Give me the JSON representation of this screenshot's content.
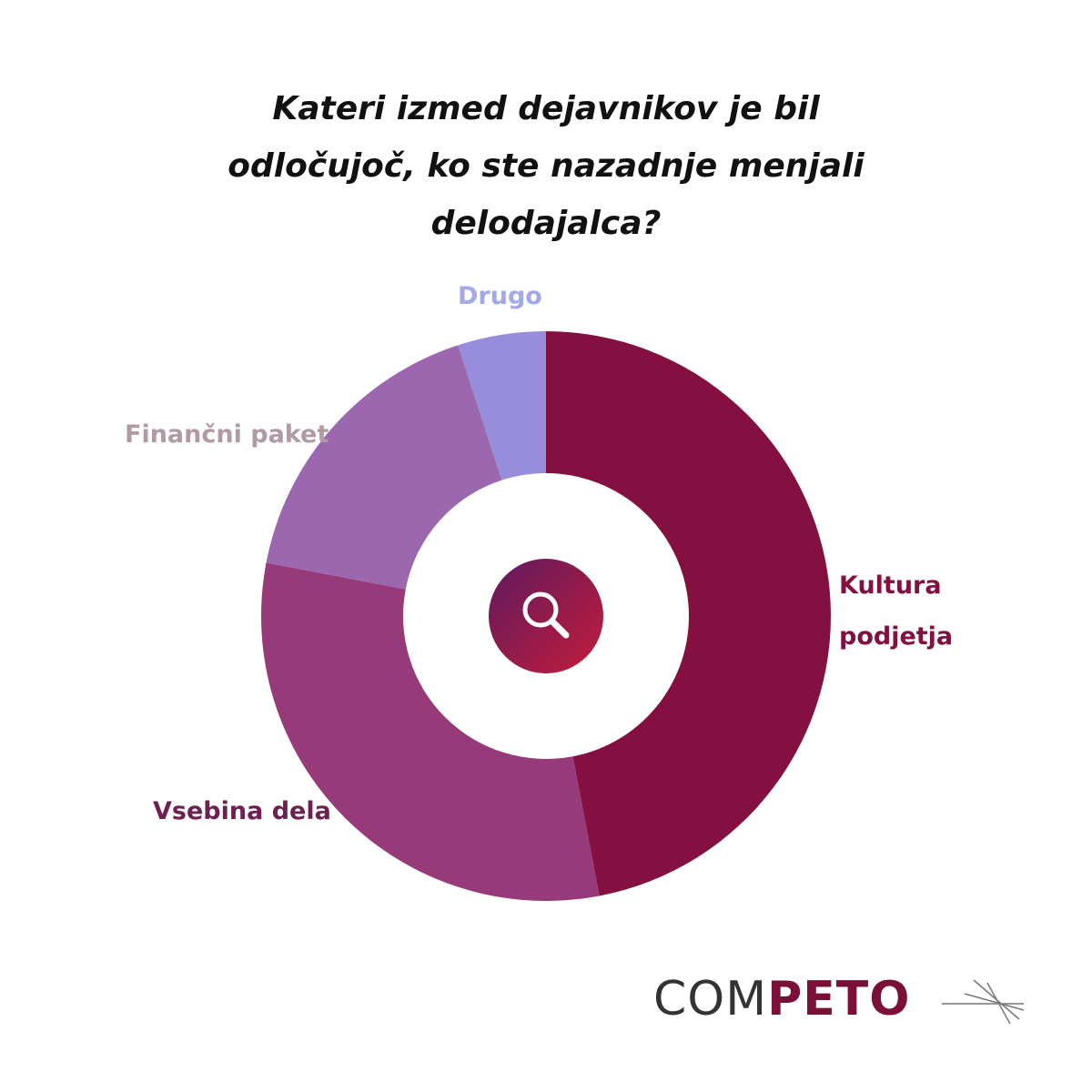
{
  "chart_data": {
    "type": "donut",
    "title": "Kateri izmed dejavnikov je bil odločujoč, ko ste nazadnje menjali delodajalca?",
    "categories": [
      "Kultura podjetja",
      "Vsebina dela",
      "Finančni paket",
      "Drugo"
    ],
    "values": [
      47,
      31,
      17,
      5
    ],
    "colors": [
      "#841041",
      "#963a79",
      "#9b67ae",
      "#978ddb"
    ],
    "label_colors": [
      "#841041",
      "#6e2050",
      "#b09aa6",
      "#a3a8e8"
    ]
  },
  "logo": {
    "part1": "COM",
    "part2": "PETO"
  }
}
